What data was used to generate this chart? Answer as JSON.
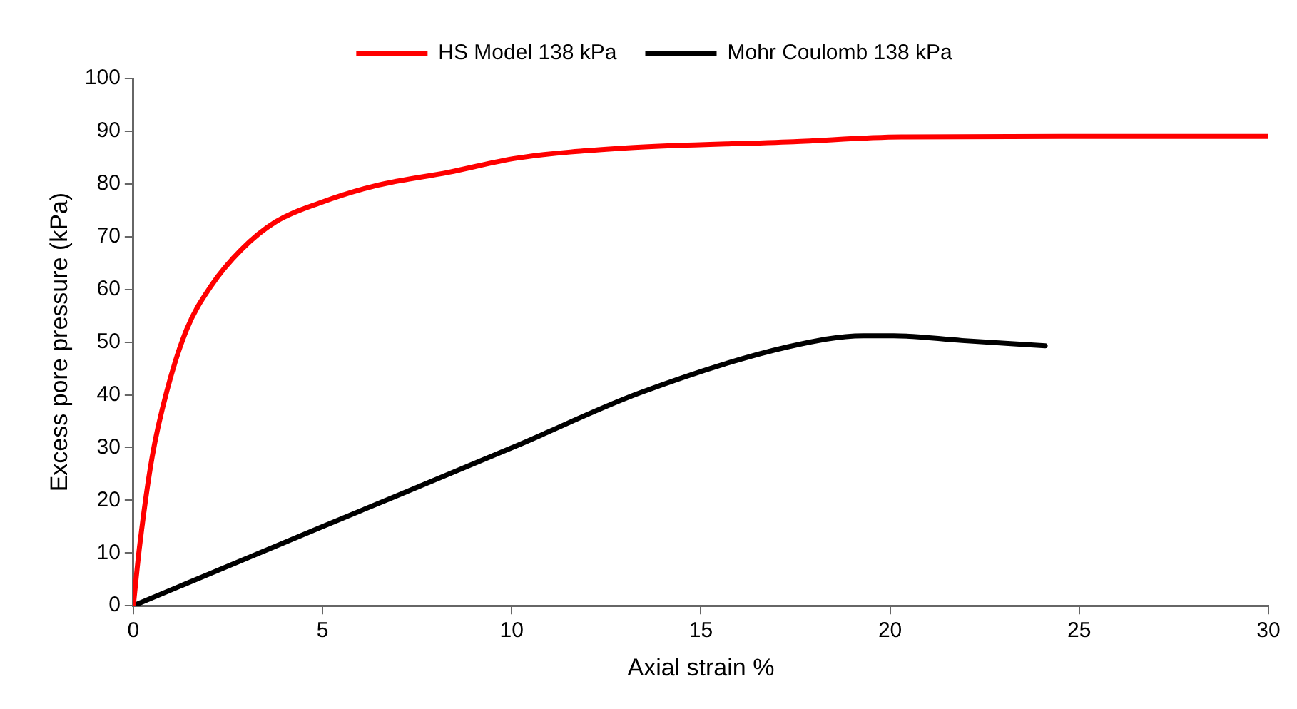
{
  "chart_data": {
    "type": "line",
    "xlabel": "Axial strain %",
    "ylabel": "Excess pore pressure (kPa)",
    "xlim": [
      0,
      30
    ],
    "xticks": [
      0,
      5,
      10,
      15,
      20,
      25,
      30
    ],
    "ylim": [
      0,
      100
    ],
    "yticks": [
      0,
      10,
      20,
      30,
      40,
      50,
      60,
      70,
      80,
      90,
      100
    ],
    "grid": false,
    "legend": "top",
    "marker": "none",
    "line_style": "solid",
    "series": [
      {
        "name": "HS Model 138 kPa",
        "color": "#ff0000",
        "x": [
          0,
          0.17,
          0.5,
          0.89,
          1.41,
          2.06,
          2.85,
          3.76,
          4.93,
          6.37,
          8.33,
          10.15,
          13,
          17.45,
          20.3,
          25,
          30
        ],
        "values": [
          0,
          11.5,
          28.3,
          40.8,
          52.4,
          60.7,
          67.5,
          72.8,
          76.4,
          79.6,
          82.2,
          84.9,
          86.8,
          88,
          88.9,
          89,
          89
        ]
      },
      {
        "name": "Mohr Coulomb 138 kPa",
        "color": "#000000",
        "x": [
          0,
          5,
          10.15,
          13.4,
          17.3,
          19.3,
          20.1,
          21.9,
          24.1
        ],
        "values": [
          0,
          15,
          30.4,
          40.4,
          49.1,
          51.2,
          51.2,
          50.3,
          49.3
        ]
      }
    ]
  }
}
